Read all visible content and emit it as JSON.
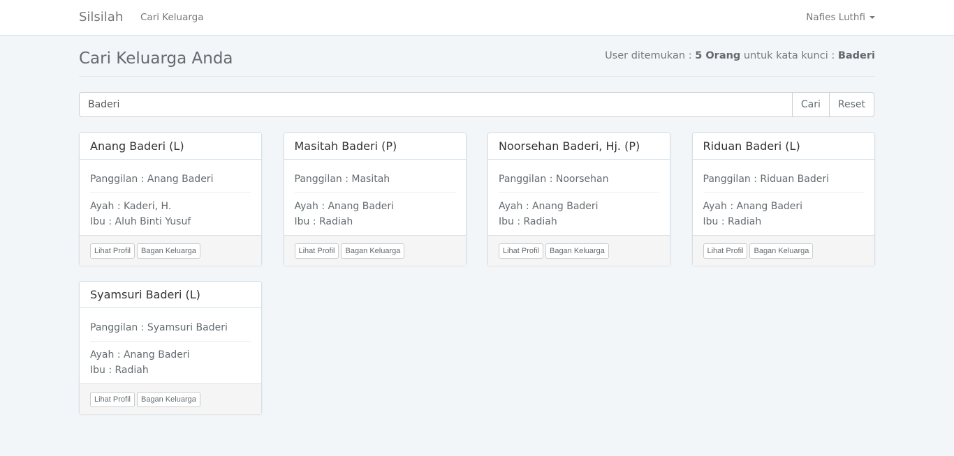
{
  "nav": {
    "brand": "Silsilah",
    "link": "Cari Keluarga",
    "user": "Nafies Luthfi"
  },
  "page": {
    "title": "Cari Keluarga Anda",
    "result_prefix": "User ditemukan : ",
    "result_count": "5 Orang",
    "result_mid": " untuk kata kunci : ",
    "result_keyword": "Baderi"
  },
  "search": {
    "value": "Baderi",
    "search_label": "Cari",
    "reset_label": "Reset"
  },
  "cards": [
    {
      "name": "Anang Baderi (L)",
      "panggilan": "Panggilan : Anang Baderi",
      "ayah": "Ayah : Kaderi, H.",
      "ibu": "Ibu : Aluh Binti Yusuf",
      "profile": "Lihat Profil",
      "tree": "Bagan Keluarga"
    },
    {
      "name": "Masitah Baderi (P)",
      "panggilan": "Panggilan : Masitah",
      "ayah": "Ayah : Anang Baderi",
      "ibu": "Ibu : Radiah",
      "profile": "Lihat Profil",
      "tree": "Bagan Keluarga"
    },
    {
      "name": "Noorsehan Baderi, Hj. (P)",
      "panggilan": "Panggilan : Noorsehan",
      "ayah": "Ayah : Anang Baderi",
      "ibu": "Ibu : Radiah",
      "profile": "Lihat Profil",
      "tree": "Bagan Keluarga"
    },
    {
      "name": "Riduan Baderi (L)",
      "panggilan": "Panggilan : Riduan Baderi",
      "ayah": "Ayah : Anang Baderi",
      "ibu": "Ibu : Radiah",
      "profile": "Lihat Profil",
      "tree": "Bagan Keluarga"
    },
    {
      "name": "Syamsuri Baderi (L)",
      "panggilan": "Panggilan : Syamsuri Baderi",
      "ayah": "Ayah : Anang Baderi",
      "ibu": "Ibu : Radiah",
      "profile": "Lihat Profil",
      "tree": "Bagan Keluarga"
    }
  ]
}
